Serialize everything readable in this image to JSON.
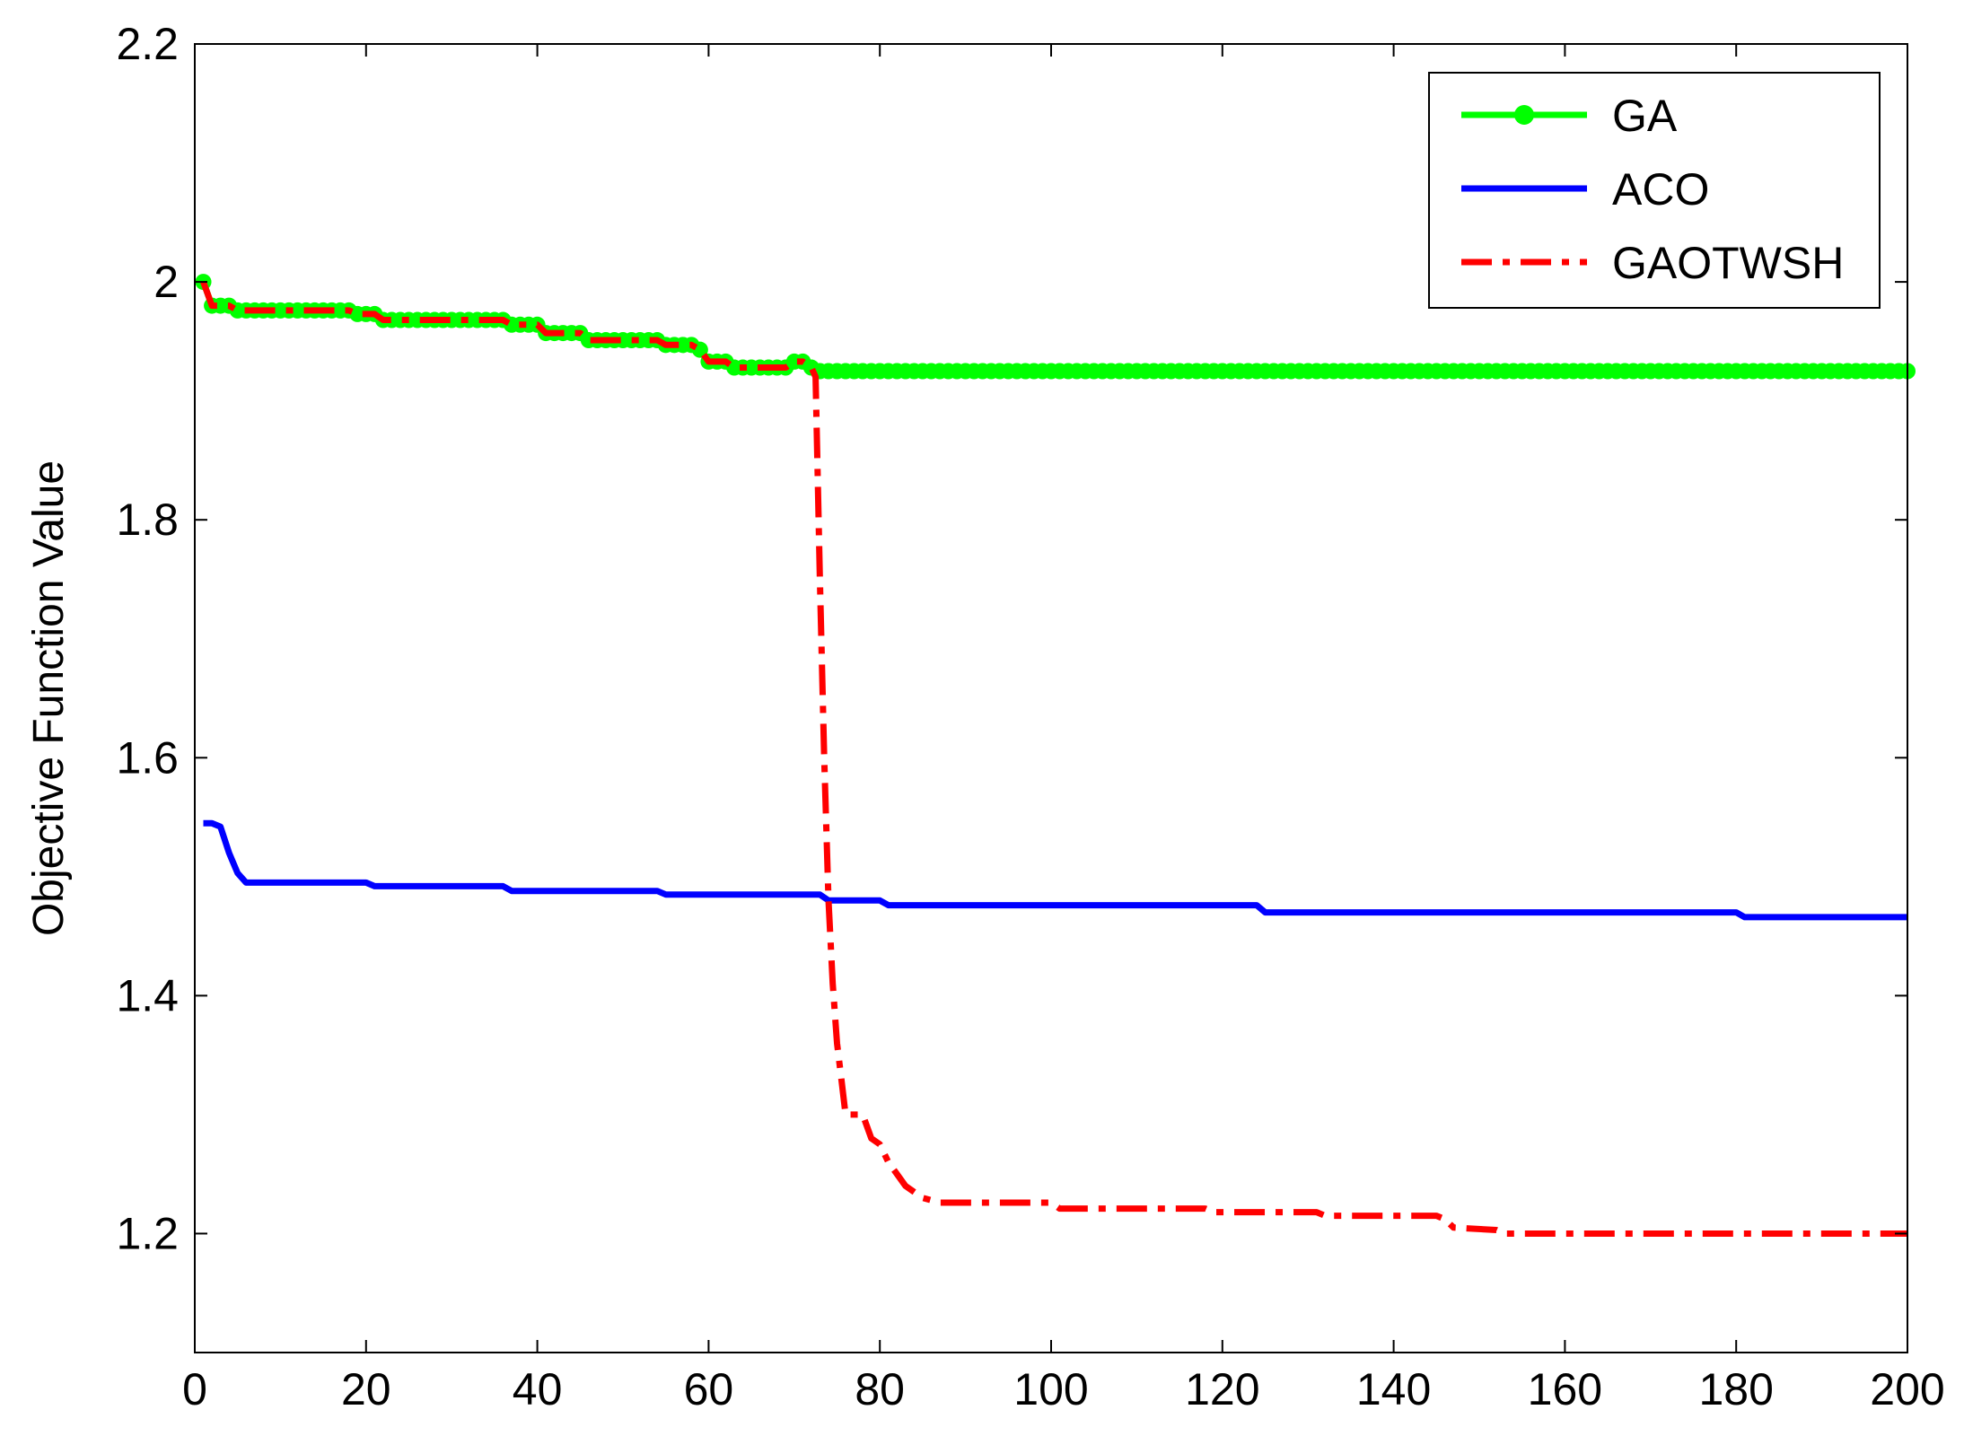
{
  "chart_data": {
    "type": "line",
    "title": "",
    "xlabel": "",
    "ylabel": "Objective Function Value",
    "xlim": [
      0,
      200
    ],
    "ylim": [
      1.1,
      2.2
    ],
    "xticks": [
      "0",
      "20",
      "40",
      "60",
      "80",
      "100",
      "120",
      "140",
      "160",
      "180",
      "200"
    ],
    "yticks": [
      "1.2",
      "1.4",
      "1.6",
      "1.8",
      "2",
      "2.2"
    ],
    "grid": false,
    "legend_position": "top-right",
    "series": [
      {
        "name": "GA",
        "color": "#00ff00",
        "style": "solid-dot-markers",
        "x": [
          1,
          2,
          3,
          4,
          5,
          6,
          7,
          8,
          9,
          10,
          11,
          12,
          13,
          14,
          15,
          16,
          17,
          18,
          19,
          20,
          21,
          22,
          23,
          24,
          25,
          26,
          27,
          28,
          29,
          30,
          31,
          32,
          33,
          34,
          35,
          36,
          37,
          38,
          39,
          40,
          41,
          42,
          43,
          44,
          45,
          46,
          47,
          48,
          49,
          50,
          51,
          52,
          53,
          54,
          55,
          56,
          57,
          58,
          59,
          60,
          61,
          62,
          63,
          64,
          65,
          66,
          67,
          68,
          69,
          70,
          71,
          72,
          73,
          200
        ],
        "values": [
          2.0,
          1.98,
          1.98,
          1.98,
          1.976,
          1.976,
          1.976,
          1.976,
          1.976,
          1.976,
          1.976,
          1.976,
          1.976,
          1.976,
          1.976,
          1.976,
          1.976,
          1.976,
          1.973,
          1.973,
          1.973,
          1.968,
          1.968,
          1.968,
          1.968,
          1.968,
          1.968,
          1.968,
          1.968,
          1.968,
          1.968,
          1.968,
          1.968,
          1.968,
          1.968,
          1.968,
          1.964,
          1.964,
          1.964,
          1.964,
          1.957,
          1.957,
          1.957,
          1.957,
          1.957,
          1.951,
          1.951,
          1.951,
          1.951,
          1.951,
          1.951,
          1.951,
          1.951,
          1.951,
          1.947,
          1.947,
          1.947,
          1.947,
          1.943,
          1.933,
          1.933,
          1.933,
          1.928,
          1.928,
          1.928,
          1.928,
          1.928,
          1.928,
          1.928,
          1.933,
          1.933,
          1.928,
          1.925,
          1.925
        ]
      },
      {
        "name": "ACO",
        "color": "#0000ff",
        "style": "solid",
        "x": [
          1,
          2,
          3,
          4,
          5,
          6,
          7,
          20,
          21,
          36,
          37,
          54,
          55,
          73,
          74,
          80,
          81,
          124,
          125,
          180,
          181,
          200
        ],
        "values": [
          1.545,
          1.545,
          1.542,
          1.52,
          1.503,
          1.495,
          1.495,
          1.495,
          1.492,
          1.492,
          1.488,
          1.488,
          1.485,
          1.485,
          1.48,
          1.48,
          1.476,
          1.476,
          1.47,
          1.47,
          1.466,
          1.466
        ]
      },
      {
        "name": "GAOTWSH",
        "color": "#ff0000",
        "style": "dash-dot",
        "x": [
          1,
          2,
          3,
          4,
          5,
          6,
          7,
          8,
          9,
          10,
          11,
          12,
          13,
          14,
          15,
          16,
          17,
          18,
          19,
          20,
          21,
          22,
          23,
          24,
          25,
          26,
          27,
          28,
          29,
          30,
          31,
          32,
          33,
          34,
          35,
          36,
          37,
          38,
          39,
          40,
          41,
          42,
          43,
          44,
          45,
          46,
          47,
          48,
          49,
          50,
          51,
          52,
          53,
          54,
          55,
          56,
          57,
          58,
          59,
          60,
          61,
          62,
          63,
          64,
          65,
          66,
          67,
          68,
          69,
          70,
          71,
          72,
          72.5,
          73,
          73.5,
          74,
          74.5,
          75,
          75.5,
          76,
          77,
          78,
          79,
          80,
          81,
          82,
          83,
          84,
          85,
          86,
          87,
          88,
          100,
          101,
          118,
          119,
          131,
          132,
          144,
          145,
          146,
          147,
          152,
          153,
          200
        ],
        "values": [
          2.0,
          1.98,
          1.98,
          1.98,
          1.976,
          1.976,
          1.976,
          1.976,
          1.976,
          1.976,
          1.976,
          1.976,
          1.976,
          1.976,
          1.976,
          1.976,
          1.976,
          1.976,
          1.973,
          1.973,
          1.973,
          1.968,
          1.968,
          1.968,
          1.968,
          1.968,
          1.968,
          1.968,
          1.968,
          1.968,
          1.968,
          1.968,
          1.968,
          1.968,
          1.968,
          1.968,
          1.964,
          1.964,
          1.964,
          1.964,
          1.957,
          1.957,
          1.957,
          1.957,
          1.957,
          1.951,
          1.951,
          1.951,
          1.951,
          1.951,
          1.951,
          1.951,
          1.951,
          1.951,
          1.947,
          1.947,
          1.947,
          1.947,
          1.943,
          1.933,
          1.933,
          1.933,
          1.928,
          1.928,
          1.928,
          1.928,
          1.928,
          1.928,
          1.928,
          1.933,
          1.933,
          1.928,
          1.92,
          1.75,
          1.6,
          1.48,
          1.41,
          1.36,
          1.33,
          1.3,
          1.3,
          1.3,
          1.28,
          1.275,
          1.26,
          1.25,
          1.24,
          1.235,
          1.23,
          1.228,
          1.226,
          1.226,
          1.226,
          1.221,
          1.221,
          1.218,
          1.218,
          1.215,
          1.215,
          1.215,
          1.212,
          1.205,
          1.203,
          1.2,
          1.2
        ]
      }
    ]
  }
}
